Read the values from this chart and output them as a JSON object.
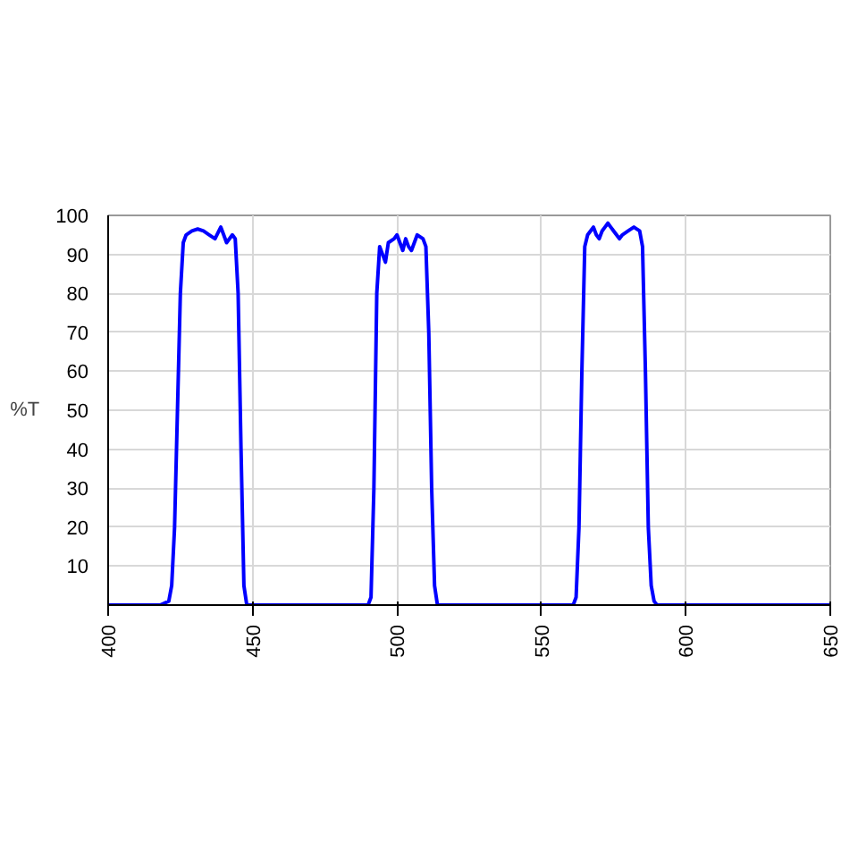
{
  "chart_data": {
    "type": "line",
    "ylabel": "%T",
    "x": [
      400,
      418,
      421,
      422,
      423,
      424,
      425,
      426,
      427,
      429,
      431,
      433,
      435,
      437,
      439,
      440,
      441,
      443,
      444,
      445,
      446,
      447,
      448,
      490,
      491,
      492,
      493,
      494,
      495,
      496,
      497,
      499,
      500,
      501,
      502,
      503,
      504,
      505,
      506,
      507,
      509,
      510,
      511,
      512,
      513,
      514,
      561,
      562,
      563,
      564,
      565,
      566,
      567,
      568,
      569,
      570,
      571,
      572,
      573,
      574,
      575,
      576,
      577,
      578,
      580,
      582,
      584,
      585,
      586,
      587,
      588,
      589,
      590,
      650
    ],
    "series": [
      {
        "color": "#0000ff",
        "values": [
          0,
          0,
          1,
          5,
          20,
          50,
          80,
          93,
          95,
          96,
          96.5,
          96,
          95,
          94,
          97,
          95,
          93,
          95,
          94,
          80,
          40,
          5,
          0,
          0,
          2,
          30,
          80,
          92,
          90,
          88,
          93,
          94,
          95,
          93,
          91,
          94,
          92,
          91,
          93,
          95,
          94,
          92,
          70,
          30,
          5,
          0,
          0,
          2,
          20,
          60,
          92,
          95,
          96,
          97,
          95,
          94,
          96,
          97,
          98,
          97,
          96,
          95,
          94,
          95,
          96,
          97,
          96,
          92,
          60,
          20,
          5,
          1,
          0,
          0
        ]
      }
    ],
    "xlim": [
      400,
      650
    ],
    "xticks": [
      400,
      450,
      500,
      550,
      600,
      650
    ],
    "ylim": [
      0,
      100
    ],
    "yticks": [
      10,
      20,
      30,
      40,
      50,
      60,
      70,
      80,
      90,
      100
    ],
    "grid": true,
    "marker": "none",
    "line_style": "solid"
  }
}
